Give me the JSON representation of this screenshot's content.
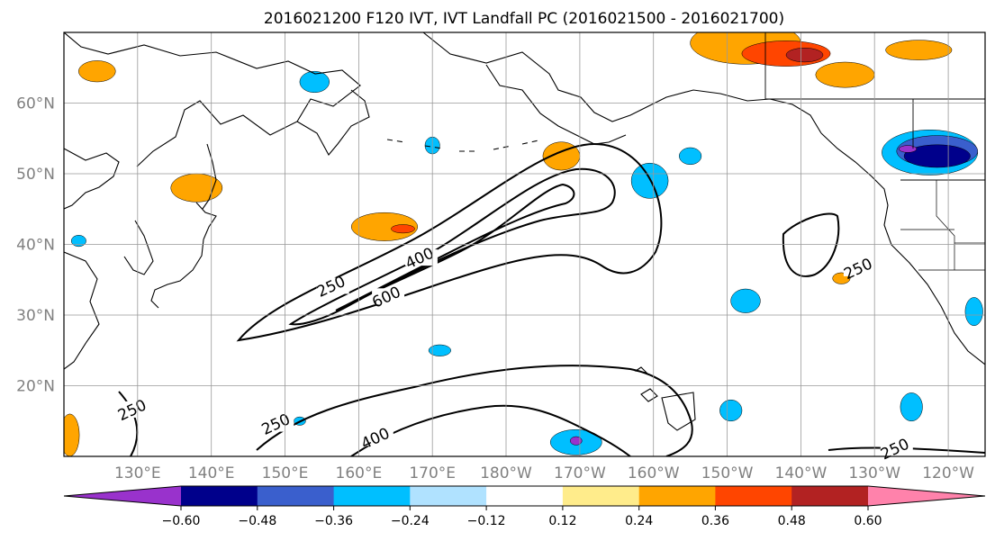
{
  "chart_data": {
    "type": "map-contour",
    "title": "2016021200 F120 IVT, IVT Landfall PC (2016021500 - 2016021700)",
    "projection": "PlateCarree",
    "lon_range": [
      120,
      245
    ],
    "lat_range": [
      10,
      70
    ],
    "lat_ticks": [
      {
        "value": 20,
        "label": "20°N"
      },
      {
        "value": 30,
        "label": "30°N"
      },
      {
        "value": 40,
        "label": "40°N"
      },
      {
        "value": 50,
        "label": "50°N"
      },
      {
        "value": 60,
        "label": "60°N"
      }
    ],
    "lon_ticks": [
      {
        "value": 130,
        "label": "130°E"
      },
      {
        "value": 140,
        "label": "140°E"
      },
      {
        "value": 150,
        "label": "150°E"
      },
      {
        "value": 160,
        "label": "160°E"
      },
      {
        "value": 170,
        "label": "170°E"
      },
      {
        "value": 180,
        "label": "180°W"
      },
      {
        "value": 190,
        "label": "170°W"
      },
      {
        "value": 200,
        "label": "160°W"
      },
      {
        "value": 210,
        "label": "150°W"
      },
      {
        "value": 220,
        "label": "140°W"
      },
      {
        "value": 230,
        "label": "130°W"
      },
      {
        "value": 240,
        "label": "120°W"
      }
    ],
    "gridlines": true,
    "ivt_contour_levels": [
      250,
      400,
      600
    ],
    "contour_labels": [
      {
        "text": "250",
        "lon": 156.5,
        "lat": 33.5
      },
      {
        "text": "400",
        "lon": 168.5,
        "lat": 37.5
      },
      {
        "text": "600",
        "lon": 164,
        "lat": 32
      },
      {
        "text": "250",
        "lon": 228,
        "lat": 36
      },
      {
        "text": "250",
        "lon": 129.5,
        "lat": 16
      },
      {
        "text": "250",
        "lon": 149,
        "lat": 14
      },
      {
        "text": "400",
        "lon": 162.5,
        "lat": 12
      },
      {
        "text": "250",
        "lon": 233,
        "lat": 10.5
      }
    ],
    "colorbar": {
      "levels": [
        -0.6,
        -0.48,
        -0.36,
        -0.24,
        -0.12,
        0.12,
        0.24,
        0.36,
        0.48,
        0.6
      ],
      "tick_labels": [
        "−0.60",
        "−0.48",
        "−0.36",
        "−0.24",
        "−0.12",
        "0.12",
        "0.24",
        "0.36",
        "0.48",
        "0.60"
      ],
      "colors": [
        "#9932cc",
        "#00008b",
        "#3a5fcd",
        "#00bfff",
        "#b0e2ff",
        "#ffffff",
        "#ffec8b",
        "#ffa500",
        "#ff4500",
        "#b22222",
        "#ff82ab"
      ],
      "extend": "both"
    },
    "pc_regions": [
      {
        "color": "#ffa500",
        "lon": 212.5,
        "lat": 68.5,
        "rlon": 7.5,
        "rlat": 3
      },
      {
        "color": "#ff4500",
        "lon": 218,
        "lat": 67,
        "rlon": 6,
        "rlat": 1.8
      },
      {
        "color": "#b22222",
        "lon": 220.5,
        "lat": 66.8,
        "rlon": 2.5,
        "rlat": 1
      },
      {
        "color": "#ffa500",
        "lon": 226,
        "lat": 64,
        "rlon": 4,
        "rlat": 1.8
      },
      {
        "color": "#ffa500",
        "lon": 236,
        "lat": 67.5,
        "rlon": 4.5,
        "rlat": 1.4
      },
      {
        "color": "#ffa500",
        "lon": 124.5,
        "lat": 64.5,
        "rlon": 2.5,
        "rlat": 1.5
      },
      {
        "color": "#ffa500",
        "lon": 138,
        "lat": 48,
        "rlon": 3.5,
        "rlat": 2
      },
      {
        "color": "#ffa500",
        "lon": 163.5,
        "lat": 42.5,
        "rlon": 4.5,
        "rlat": 2
      },
      {
        "color": "#ff4500",
        "lon": 166,
        "lat": 42.2,
        "rlon": 1.6,
        "rlat": 0.6
      },
      {
        "color": "#ffa500",
        "lon": 187.5,
        "lat": 52.5,
        "rlon": 2.5,
        "rlat": 2
      },
      {
        "color": "#ffa500",
        "lon": 225.5,
        "lat": 35.2,
        "rlon": 1.2,
        "rlat": 0.8
      },
      {
        "color": "#ffa500",
        "lon": 120.8,
        "lat": 13,
        "rlon": 1.3,
        "rlat": 3
      },
      {
        "color": "#00bfff",
        "lon": 237.5,
        "lat": 53,
        "rlon": 6.5,
        "rlat": 3.2
      },
      {
        "color": "#3a5fcd",
        "lon": 238.5,
        "lat": 53.2,
        "rlon": 5.5,
        "rlat": 2.2
      },
      {
        "color": "#00008b",
        "lon": 238.5,
        "lat": 52.5,
        "rlon": 4.5,
        "rlat": 1.6
      },
      {
        "color": "#9932cc",
        "lon": 234.5,
        "lat": 53.5,
        "rlon": 1.2,
        "rlat": 0.5
      },
      {
        "color": "#00bfff",
        "lon": 205,
        "lat": 52.5,
        "rlon": 1.5,
        "rlat": 1.2
      },
      {
        "color": "#00bfff",
        "lon": 199.5,
        "lat": 49,
        "rlon": 2.5,
        "rlat": 2.5
      },
      {
        "color": "#00bfff",
        "lon": 154,
        "lat": 63,
        "rlon": 2,
        "rlat": 1.5
      },
      {
        "color": "#00bfff",
        "lon": 170,
        "lat": 54,
        "rlon": 1,
        "rlat": 1.2
      },
      {
        "color": "#00bfff",
        "lon": 212.5,
        "lat": 32,
        "rlon": 2,
        "rlat": 1.7
      },
      {
        "color": "#00bfff",
        "lon": 243.5,
        "lat": 30.5,
        "rlon": 1.2,
        "rlat": 2
      },
      {
        "color": "#00bfff",
        "lon": 235,
        "lat": 17,
        "rlon": 1.5,
        "rlat": 2
      },
      {
        "color": "#00bfff",
        "lon": 210.5,
        "lat": 16.5,
        "rlon": 1.5,
        "rlat": 1.5
      },
      {
        "color": "#00bfff",
        "lon": 189.5,
        "lat": 12,
        "rlon": 3.5,
        "rlat": 1.8
      },
      {
        "color": "#9932cc",
        "lon": 189.5,
        "lat": 12.2,
        "rlon": 0.8,
        "rlat": 0.6
      },
      {
        "color": "#00bfff",
        "lon": 171,
        "lat": 25,
        "rlon": 1.5,
        "rlat": 0.8
      },
      {
        "color": "#00bfff",
        "lon": 152,
        "lat": 15,
        "rlon": 0.8,
        "rlat": 0.6
      },
      {
        "color": "#00bfff",
        "lon": 122,
        "lat": 40.5,
        "rlon": 1,
        "rlat": 0.8
      }
    ]
  }
}
